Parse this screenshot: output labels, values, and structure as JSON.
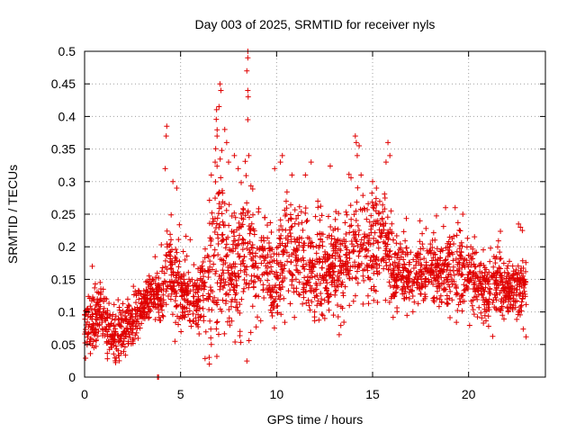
{
  "chart_data": {
    "type": "scatter",
    "title": "Day 003 of 2025, SRMTID for receiver nyls",
    "xlabel": "GPS time / hours",
    "ylabel": "SRMTID / TECUs",
    "xlim": [
      0,
      24
    ],
    "ylim": [
      0,
      0.5
    ],
    "xticks": [
      0,
      5,
      10,
      15,
      20
    ],
    "xtick_labels": [
      "0",
      "5",
      "10",
      "15",
      "20"
    ],
    "yticks": [
      0,
      0.05,
      0.1,
      0.15,
      0.2,
      0.25,
      0.3,
      0.35,
      0.4,
      0.45,
      0.5
    ],
    "ytick_labels": [
      "0",
      "0.05",
      "0.1",
      "0.15",
      "0.2",
      "0.25",
      "0.3",
      "0.35",
      "0.4",
      "0.45",
      "0.5"
    ],
    "grid": true,
    "marker": "plus",
    "marker_color": "#e00000",
    "x_data_max": 23,
    "envelope": [
      [
        0.0,
        0.07,
        0.025
      ],
      [
        0.5,
        0.09,
        0.03
      ],
      [
        1.0,
        0.09,
        0.03
      ],
      [
        1.5,
        0.065,
        0.025
      ],
      [
        2.0,
        0.07,
        0.025
      ],
      [
        2.5,
        0.09,
        0.025
      ],
      [
        3.0,
        0.11,
        0.02
      ],
      [
        3.5,
        0.13,
        0.02
      ],
      [
        4.0,
        0.12,
        0.03
      ],
      [
        4.5,
        0.17,
        0.05
      ],
      [
        5.0,
        0.13,
        0.035
      ],
      [
        5.5,
        0.12,
        0.03
      ],
      [
        6.0,
        0.12,
        0.03
      ],
      [
        6.5,
        0.17,
        0.07
      ],
      [
        7.0,
        0.22,
        0.09
      ],
      [
        7.5,
        0.15,
        0.05
      ],
      [
        8.0,
        0.17,
        0.06
      ],
      [
        8.5,
        0.2,
        0.08
      ],
      [
        9.0,
        0.16,
        0.05
      ],
      [
        9.5,
        0.17,
        0.05
      ],
      [
        10.0,
        0.14,
        0.04
      ],
      [
        10.5,
        0.2,
        0.05
      ],
      [
        11.0,
        0.19,
        0.05
      ],
      [
        11.5,
        0.17,
        0.04
      ],
      [
        12.0,
        0.15,
        0.045
      ],
      [
        12.5,
        0.16,
        0.05
      ],
      [
        13.0,
        0.17,
        0.045
      ],
      [
        13.5,
        0.16,
        0.04
      ],
      [
        14.0,
        0.2,
        0.06
      ],
      [
        14.5,
        0.19,
        0.05
      ],
      [
        15.0,
        0.2,
        0.05
      ],
      [
        15.5,
        0.21,
        0.04
      ],
      [
        16.0,
        0.17,
        0.035
      ],
      [
        16.5,
        0.15,
        0.03
      ],
      [
        17.0,
        0.15,
        0.03
      ],
      [
        17.5,
        0.16,
        0.03
      ],
      [
        18.0,
        0.16,
        0.03
      ],
      [
        18.5,
        0.16,
        0.03
      ],
      [
        19.0,
        0.17,
        0.04
      ],
      [
        19.5,
        0.16,
        0.04
      ],
      [
        20.0,
        0.15,
        0.035
      ],
      [
        20.5,
        0.14,
        0.03
      ],
      [
        21.0,
        0.13,
        0.03
      ],
      [
        21.5,
        0.14,
        0.03
      ],
      [
        22.0,
        0.13,
        0.025
      ],
      [
        22.5,
        0.13,
        0.03
      ],
      [
        23.0,
        0.13,
        0.03
      ]
    ],
    "spikes": [
      [
        3.8,
        0.0
      ],
      [
        3.85,
        0.0
      ],
      [
        4.2,
        0.32
      ],
      [
        4.25,
        0.37
      ],
      [
        4.28,
        0.385
      ],
      [
        4.6,
        0.3
      ],
      [
        4.8,
        0.29
      ],
      [
        6.6,
        0.31
      ],
      [
        6.8,
        0.33
      ],
      [
        6.9,
        0.37
      ],
      [
        7.0,
        0.415
      ],
      [
        7.05,
        0.45
      ],
      [
        7.1,
        0.44
      ],
      [
        7.3,
        0.38
      ],
      [
        7.4,
        0.36
      ],
      [
        7.5,
        0.33
      ],
      [
        7.8,
        0.34
      ],
      [
        8.5,
        0.5
      ],
      [
        8.5,
        0.49
      ],
      [
        8.45,
        0.47
      ],
      [
        8.5,
        0.44
      ],
      [
        8.52,
        0.43
      ],
      [
        8.5,
        0.395
      ],
      [
        8.55,
        0.34
      ],
      [
        8.0,
        0.32
      ],
      [
        9.9,
        0.32
      ],
      [
        10.3,
        0.34
      ],
      [
        10.2,
        0.33
      ],
      [
        10.8,
        0.31
      ],
      [
        11.8,
        0.33
      ],
      [
        11.5,
        0.31
      ],
      [
        14.1,
        0.37
      ],
      [
        14.15,
        0.36
      ],
      [
        14.3,
        0.355
      ],
      [
        14.2,
        0.34
      ],
      [
        14.4,
        0.31
      ],
      [
        15.8,
        0.36
      ],
      [
        15.9,
        0.34
      ],
      [
        15.7,
        0.33
      ],
      [
        15.0,
        0.3
      ],
      [
        15.2,
        0.29
      ],
      [
        18.8,
        0.26
      ],
      [
        19.3,
        0.26
      ],
      [
        19.7,
        0.25
      ],
      [
        22.6,
        0.235
      ],
      [
        22.7,
        0.23
      ],
      [
        22.8,
        0.225
      ],
      [
        6.5,
        0.02
      ],
      [
        6.6,
        0.05
      ],
      [
        1.6,
        0.025
      ],
      [
        1.8,
        0.025
      ],
      [
        0.4,
        0.17
      ]
    ]
  }
}
